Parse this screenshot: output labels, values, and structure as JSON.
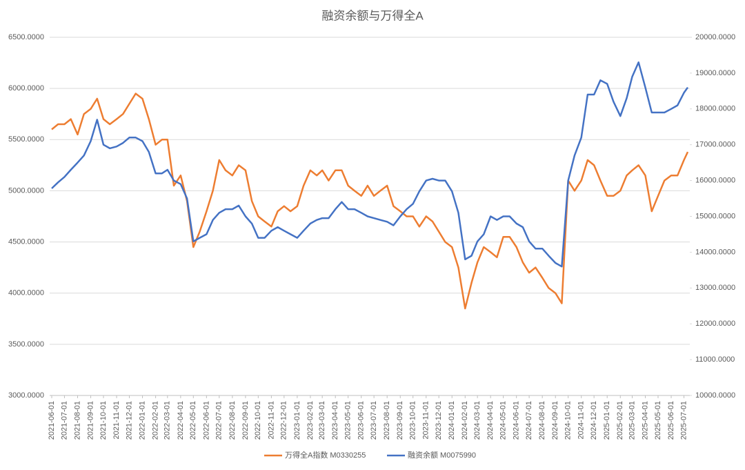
{
  "chart_data": {
    "type": "line",
    "title": "融资余额与万得全A",
    "x": [
      "2021-06-01",
      "2021-06-16",
      "2021-07-01",
      "2021-07-16",
      "2021-08-01",
      "2021-08-16",
      "2021-09-01",
      "2021-09-16",
      "2021-10-01",
      "2021-10-16",
      "2021-11-01",
      "2021-11-16",
      "2021-12-01",
      "2021-12-16",
      "2022-01-01",
      "2022-01-16",
      "2022-02-01",
      "2022-02-16",
      "2022-03-01",
      "2022-03-16",
      "2022-04-01",
      "2022-04-16",
      "2022-05-01",
      "2022-05-16",
      "2022-06-01",
      "2022-06-16",
      "2022-07-01",
      "2022-07-16",
      "2022-08-01",
      "2022-08-16",
      "2022-09-01",
      "2022-09-16",
      "2022-10-01",
      "2022-10-16",
      "2022-11-01",
      "2022-11-16",
      "2022-12-01",
      "2022-12-16",
      "2023-01-01",
      "2023-01-16",
      "2023-02-01",
      "2023-02-16",
      "2023-03-01",
      "2023-03-16",
      "2023-04-01",
      "2023-04-16",
      "2023-05-01",
      "2023-05-16",
      "2023-06-01",
      "2023-06-16",
      "2023-07-01",
      "2023-07-16",
      "2023-08-01",
      "2023-08-16",
      "2023-09-01",
      "2023-09-16",
      "2023-10-01",
      "2023-10-16",
      "2023-11-01",
      "2023-11-16",
      "2023-12-01",
      "2023-12-16",
      "2024-01-01",
      "2024-01-16",
      "2024-02-01",
      "2024-02-16",
      "2024-03-01",
      "2024-03-16",
      "2024-04-01",
      "2024-04-16",
      "2024-05-01",
      "2024-05-16",
      "2024-06-01",
      "2024-06-16",
      "2024-07-01",
      "2024-07-16",
      "2024-08-01",
      "2024-08-16",
      "2024-09-01",
      "2024-09-16",
      "2024-10-01",
      "2024-10-16",
      "2024-11-01",
      "2024-11-16",
      "2024-12-01",
      "2024-12-16",
      "2025-01-01",
      "2025-01-16",
      "2025-02-01",
      "2025-02-16",
      "2025-03-01",
      "2025-03-16",
      "2025-04-01",
      "2025-04-16",
      "2025-05-01",
      "2025-05-16",
      "2025-06-01",
      "2025-06-16",
      "2025-07-01",
      "2025-07-10"
    ],
    "series": [
      {
        "name": "万得全A指数 M0330255",
        "color": "#ed7d31",
        "axis": "y",
        "values": [
          5600,
          5650,
          5650,
          5700,
          5550,
          5750,
          5800,
          5900,
          5700,
          5650,
          5700,
          5750,
          5850,
          5950,
          5900,
          5700,
          5450,
          5500,
          5500,
          5050,
          5150,
          4900,
          4450,
          4600,
          4800,
          5000,
          5300,
          5200,
          5150,
          5250,
          5200,
          4900,
          4750,
          4700,
          4650,
          4800,
          4850,
          4800,
          4850,
          5050,
          5200,
          5150,
          5200,
          5100,
          5200,
          5200,
          5050,
          5000,
          4950,
          5050,
          4950,
          5000,
          5050,
          4850,
          4800,
          4750,
          4750,
          4650,
          4750,
          4700,
          4600,
          4500,
          4450,
          4250,
          3850,
          4100,
          4300,
          4450,
          4400,
          4350,
          4550,
          4550,
          4450,
          4300,
          4200,
          4250,
          4150,
          4050,
          4000,
          3900,
          5100,
          5000,
          5100,
          5300,
          5250,
          5100,
          4950,
          4950,
          5000,
          5150,
          5200,
          5250,
          5150,
          4800,
          4950,
          5100,
          5150,
          5150,
          5300,
          5380
        ]
      },
      {
        "name": "融资余额 M0075990",
        "color": "#4472c4",
        "axis": "y2",
        "values": [
          15780,
          15950,
          16100,
          16300,
          16500,
          16700,
          17100,
          17700,
          17000,
          16900,
          16950,
          17050,
          17200,
          17200,
          17100,
          16800,
          16200,
          16200,
          16300,
          16000,
          15900,
          15500,
          14300,
          14400,
          14500,
          14900,
          15100,
          15200,
          15200,
          15300,
          15000,
          14800,
          14400,
          14400,
          14600,
          14700,
          14600,
          14500,
          14400,
          14600,
          14800,
          14900,
          14950,
          14950,
          15200,
          15400,
          15200,
          15200,
          15100,
          15000,
          14950,
          14900,
          14850,
          14750,
          15000,
          15200,
          15350,
          15700,
          16000,
          16050,
          16000,
          16000,
          15700,
          15100,
          13800,
          13900,
          14300,
          14500,
          15000,
          14900,
          15000,
          15000,
          14800,
          14700,
          14300,
          14100,
          14100,
          13900,
          13700,
          13600,
          16000,
          16700,
          17200,
          18400,
          18400,
          18800,
          18700,
          18200,
          17800,
          18300,
          18900,
          19300,
          18600,
          17900,
          17900,
          17900,
          18000,
          18100,
          18450,
          18600
        ]
      }
    ],
    "xlim": [
      "2021-06-01",
      "2025-07-10"
    ],
    "xticks": [
      "2021-06-01",
      "2021-07-01",
      "2021-08-01",
      "2021-09-01",
      "2021-10-01",
      "2021-11-01",
      "2021-12-01",
      "2022-01-01",
      "2022-02-01",
      "2022-03-01",
      "2022-04-01",
      "2022-05-01",
      "2022-06-01",
      "2022-07-01",
      "2022-08-01",
      "2022-09-01",
      "2022-10-01",
      "2022-11-01",
      "2022-12-01",
      "2023-01-01",
      "2023-02-01",
      "2023-03-01",
      "2023-04-01",
      "2023-05-01",
      "2023-06-01",
      "2023-07-01",
      "2023-08-01",
      "2023-09-01",
      "2023-10-01",
      "2023-11-01",
      "2023-12-01",
      "2024-01-01",
      "2024-02-01",
      "2024-03-01",
      "2024-04-01",
      "2024-05-01",
      "2024-06-01",
      "2024-07-01",
      "2024-08-01",
      "2024-09-01",
      "2024-10-01",
      "2024-11-01",
      "2024-12-01",
      "2025-01-01",
      "2025-02-01",
      "2025-03-01",
      "2025-04-01",
      "2025-05-01",
      "2025-06-01",
      "2025-07-01"
    ],
    "ylim": [
      3000,
      6500
    ],
    "yticks": [
      {
        "value": 3000,
        "label": "3000.0000"
      },
      {
        "value": 3500,
        "label": "3500.0000"
      },
      {
        "value": 4000,
        "label": "4000.0000"
      },
      {
        "value": 4500,
        "label": "4500.0000"
      },
      {
        "value": 5000,
        "label": "5000.0000"
      },
      {
        "value": 5500,
        "label": "5500.0000"
      },
      {
        "value": 6000,
        "label": "6000.0000"
      },
      {
        "value": 6500,
        "label": "6500.0000"
      }
    ],
    "y2lim": [
      10000,
      20000
    ],
    "y2ticks": [
      {
        "value": 10000,
        "label": "10000.0000"
      },
      {
        "value": 11000,
        "label": "11000.0000"
      },
      {
        "value": 12000,
        "label": "12000.0000"
      },
      {
        "value": 13000,
        "label": "13000.0000"
      },
      {
        "value": 14000,
        "label": "14000.0000"
      },
      {
        "value": 15000,
        "label": "15000.0000"
      },
      {
        "value": 16000,
        "label": "16000.0000"
      },
      {
        "value": 17000,
        "label": "17000.0000"
      },
      {
        "value": 18000,
        "label": "18000.0000"
      },
      {
        "value": 19000,
        "label": "19000.0000"
      },
      {
        "value": 20000,
        "label": "20000.0000"
      }
    ],
    "grid": true,
    "legend": "bottom"
  }
}
